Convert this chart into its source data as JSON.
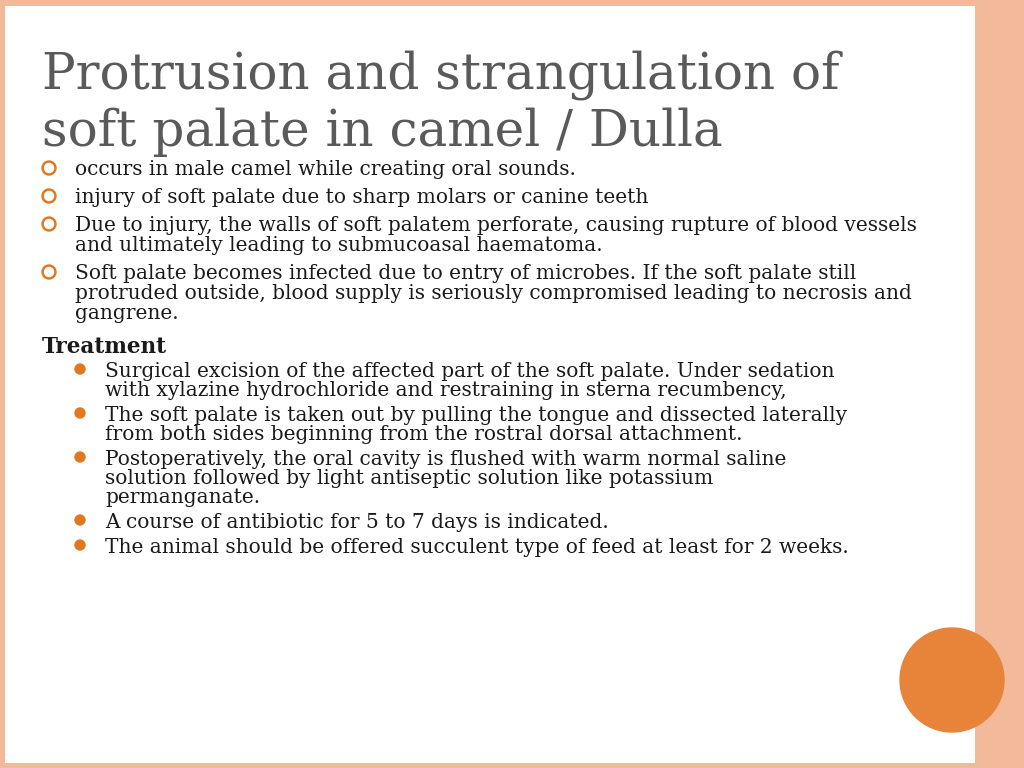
{
  "title_line1": "Protrusion and strangulation of",
  "title_line2": "soft palate in camel / Dulla",
  "title_color": "#5a5a5a",
  "background_color": "#ffffff",
  "border_color_right": "#f2b99a",
  "border_color_thin": "#f2b99a",
  "bullet_color": "#e07820",
  "bullet_points": [
    "occurs in male camel while creating oral sounds.",
    "injury of soft palate due to sharp molars or canine teeth",
    "Due to injury, the walls of soft palatem perforate, causing rupture of blood vessels\nand ultimately leading to submucoasal haematoma.",
    "Soft palate becomes infected due to entry of microbes. If the soft palate still\nprotruded outside, blood supply is seriously compromised leading to necrosis and\ngangrene."
  ],
  "treatment_header": "Treatment",
  "treatment_bullets": [
    "Surgical excision of the affected part of the soft palate. Under sedation\nwith xylazine hydrochloride and restraining in sterna recumbency,",
    "The soft palate is taken out by pulling the tongue and dissected laterally\nfrom both sides beginning from the rostral dorsal attachment.",
    "Postoperatively, the oral cavity is flushed with warm normal saline\nsolution followed by light antiseptic solution like potassium\npermanganate.",
    "A course of antibiotic for 5 to 7 days is indicated.",
    "The animal should be offered succulent type of feed at least for 2 weeks."
  ],
  "orange_circle_color": "#e8833a",
  "text_color": "#1a1a1a"
}
